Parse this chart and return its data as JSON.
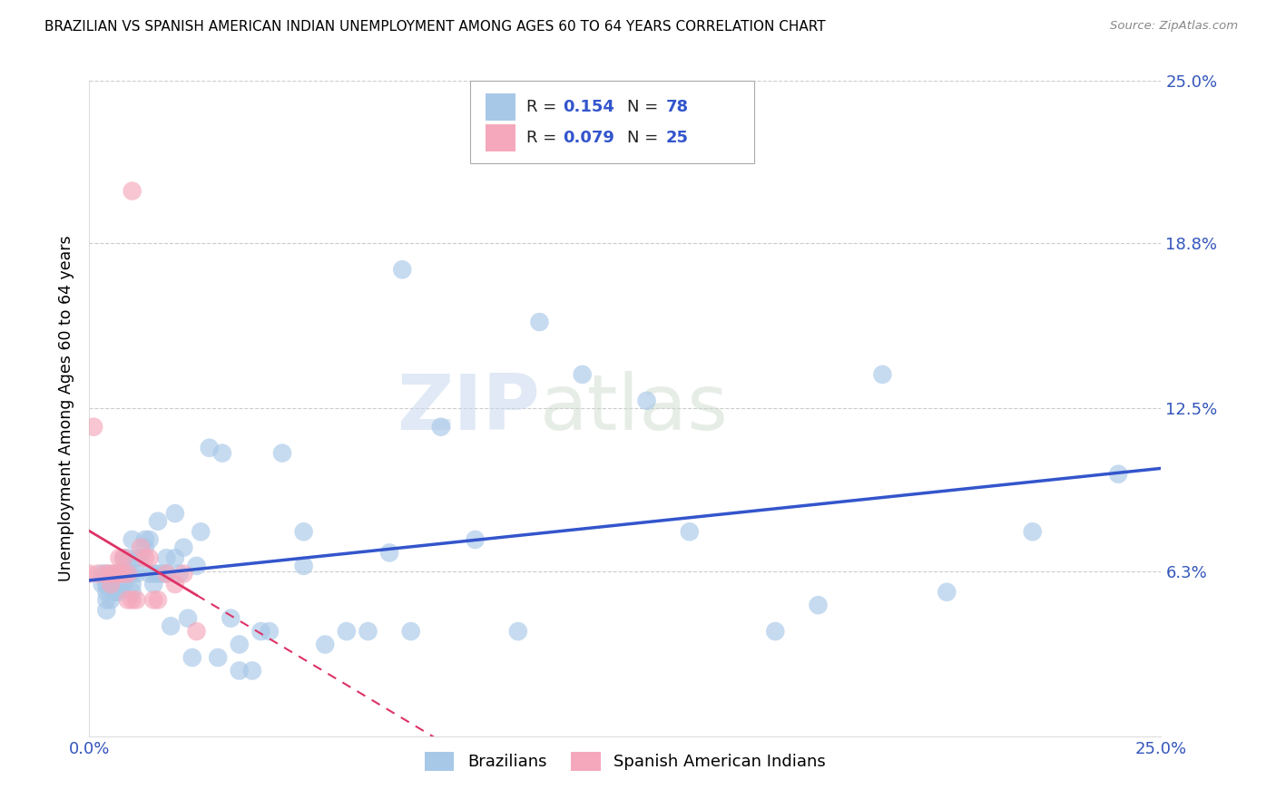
{
  "title": "BRAZILIAN VS SPANISH AMERICAN INDIAN UNEMPLOYMENT AMONG AGES 60 TO 64 YEARS CORRELATION CHART",
  "source": "Source: ZipAtlas.com",
  "ylabel": "Unemployment Among Ages 60 to 64 years",
  "xlim": [
    0.0,
    0.25
  ],
  "ylim": [
    0.0,
    0.25
  ],
  "brazilian_R": "0.154",
  "brazilian_N": "78",
  "spanish_R": "0.079",
  "spanish_N": "25",
  "brazilian_color": "#a8c8e8",
  "spanish_color": "#f5a8bc",
  "trendline_brazilian_color": "#3355cc",
  "trendline_spanish_color": "#dd3366",
  "right_ytick_values": [
    0.063,
    0.125,
    0.188,
    0.25
  ],
  "right_ytick_labels": [
    "6.3%",
    "12.5%",
    "18.8%",
    "25.0%"
  ],
  "watermark_zip": "ZIP",
  "watermark_atlas": "atlas",
  "brazilian_x": [
    0.003,
    0.003,
    0.004,
    0.004,
    0.004,
    0.004,
    0.004,
    0.004,
    0.005,
    0.005,
    0.006,
    0.006,
    0.006,
    0.007,
    0.007,
    0.007,
    0.008,
    0.008,
    0.009,
    0.009,
    0.01,
    0.01,
    0.01,
    0.01,
    0.011,
    0.011,
    0.012,
    0.013,
    0.013,
    0.014,
    0.014,
    0.015,
    0.015,
    0.016,
    0.016,
    0.017,
    0.018,
    0.018,
    0.019,
    0.02,
    0.02,
    0.021,
    0.022,
    0.023,
    0.024,
    0.025,
    0.026,
    0.028,
    0.03,
    0.031,
    0.033,
    0.035,
    0.035,
    0.038,
    0.04,
    0.042,
    0.045,
    0.05,
    0.05,
    0.055,
    0.06,
    0.065,
    0.07,
    0.073,
    0.075,
    0.082,
    0.09,
    0.1,
    0.105,
    0.115,
    0.13,
    0.14,
    0.16,
    0.17,
    0.185,
    0.2,
    0.22,
    0.24
  ],
  "brazilian_y": [
    0.058,
    0.062,
    0.055,
    0.058,
    0.062,
    0.058,
    0.048,
    0.052,
    0.052,
    0.058,
    0.055,
    0.062,
    0.055,
    0.062,
    0.055,
    0.058,
    0.058,
    0.068,
    0.062,
    0.068,
    0.062,
    0.058,
    0.055,
    0.075,
    0.068,
    0.062,
    0.068,
    0.072,
    0.075,
    0.075,
    0.062,
    0.058,
    0.062,
    0.082,
    0.062,
    0.062,
    0.062,
    0.068,
    0.042,
    0.085,
    0.068,
    0.062,
    0.072,
    0.045,
    0.03,
    0.065,
    0.078,
    0.11,
    0.03,
    0.108,
    0.045,
    0.025,
    0.035,
    0.025,
    0.04,
    0.04,
    0.108,
    0.065,
    0.078,
    0.035,
    0.04,
    0.04,
    0.07,
    0.178,
    0.04,
    0.118,
    0.075,
    0.04,
    0.158,
    0.138,
    0.128,
    0.078,
    0.04,
    0.05,
    0.138,
    0.055,
    0.078,
    0.1
  ],
  "spanish_x": [
    0.0,
    0.001,
    0.002,
    0.004,
    0.005,
    0.005,
    0.006,
    0.007,
    0.007,
    0.008,
    0.008,
    0.009,
    0.009,
    0.01,
    0.01,
    0.011,
    0.012,
    0.013,
    0.014,
    0.015,
    0.016,
    0.018,
    0.02,
    0.022,
    0.025
  ],
  "spanish_y": [
    0.062,
    0.118,
    0.062,
    0.062,
    0.058,
    0.062,
    0.062,
    0.062,
    0.068,
    0.062,
    0.068,
    0.052,
    0.062,
    0.052,
    0.208,
    0.052,
    0.072,
    0.068,
    0.068,
    0.052,
    0.052,
    0.062,
    0.058,
    0.062,
    0.04
  ]
}
